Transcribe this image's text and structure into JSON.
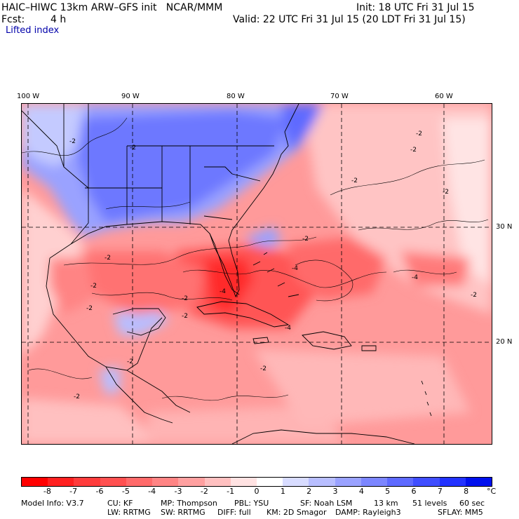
{
  "header": {
    "title": "HAIC–HIWC 13km ARW–GFS init   NCAR/MMM",
    "init": "Init: 18 UTC Fri 31 Jul 15",
    "fcst_label": "Fcst:",
    "fcst_value": "4 h",
    "valid": "Valid: 22 UTC Fri 31 Jul 15 (20 LDT Fri 31 Jul 15)",
    "field": "Lifted index"
  },
  "map": {
    "lon_labels": [
      "100 W",
      "90 W",
      "80 W",
      "70 W",
      "60 W"
    ],
    "lat_labels": [
      "30 N",
      "20 N"
    ],
    "contour_labels": [
      "-2",
      "-2",
      "-2",
      "-2",
      "-2",
      "-2",
      "-2",
      "-2",
      "-2",
      "-4",
      "-4",
      "-4",
      "-2",
      "-2",
      "-2",
      "-4",
      "-2",
      "-2",
      "-2",
      "-2"
    ]
  },
  "colorbar": {
    "labels": [
      "-8",
      "-7",
      "-6",
      "-5",
      "-4",
      "-3",
      "-2",
      "-1",
      "0",
      "1",
      "2",
      "3",
      "4",
      "5",
      "6",
      "7",
      "8"
    ],
    "unit": "°C",
    "colors": [
      "#ff0000",
      "#ff2020",
      "#ff3c3c",
      "#ff5050",
      "#ff6a6a",
      "#ff8484",
      "#ffa0a0",
      "#ffc0c0",
      "#ffe2e2",
      "#ffffff",
      "#d8dcff",
      "#b8beff",
      "#9aa2ff",
      "#7c86ff",
      "#5e6aff",
      "#404eff",
      "#2232ff",
      "#0010ee"
    ]
  },
  "footer": {
    "line1": {
      "model": "Model Info: V3.7",
      "cu": "CU: KF",
      "mp": "MP: Thompson",
      "pbl": "PBL: YSU",
      "sf": "SF: Noah LSM",
      "res": "13 km",
      "levels": "51 levels",
      "dt": "60 sec"
    },
    "line2": {
      "lw": "LW: RRTMG",
      "sw": "SW: RRTMG",
      "diff": "DIFF: full",
      "km": "KM: 2D Smagor",
      "damp": "DAMP: Rayleigh3",
      "sflay": "SFLAY: MM5"
    }
  }
}
